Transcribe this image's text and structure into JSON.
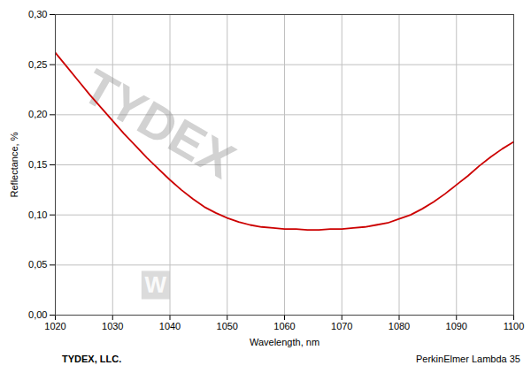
{
  "chart_data": {
    "type": "line",
    "xlabel": "Wavelength, nm",
    "ylabel": "Reflectance, %",
    "x": [
      1020,
      1022,
      1024,
      1026,
      1028,
      1030,
      1032,
      1034,
      1036,
      1038,
      1040,
      1042,
      1044,
      1046,
      1048,
      1050,
      1052,
      1054,
      1056,
      1058,
      1060,
      1062,
      1064,
      1066,
      1068,
      1070,
      1072,
      1074,
      1076,
      1078,
      1080,
      1082,
      1084,
      1086,
      1088,
      1090,
      1092,
      1094,
      1096,
      1098,
      1100
    ],
    "values": [
      0.262,
      0.248,
      0.234,
      0.22,
      0.207,
      0.194,
      0.181,
      0.169,
      0.157,
      0.146,
      0.135,
      0.125,
      0.116,
      0.108,
      0.102,
      0.097,
      0.093,
      0.09,
      0.088,
      0.087,
      0.086,
      0.086,
      0.085,
      0.085,
      0.086,
      0.086,
      0.087,
      0.088,
      0.09,
      0.092,
      0.096,
      0.1,
      0.106,
      0.113,
      0.121,
      0.13,
      0.139,
      0.149,
      0.158,
      0.166,
      0.173
    ],
    "color": "#cc0000",
    "xlim": [
      1020,
      1100
    ],
    "ylim": [
      0.0,
      0.3
    ],
    "xticks": [
      1020,
      1030,
      1040,
      1050,
      1060,
      1070,
      1080,
      1090,
      1100
    ],
    "yticks": [
      {
        "value": 0.0,
        "label": "0,00"
      },
      {
        "value": 0.05,
        "label": "0,05"
      },
      {
        "value": 0.1,
        "label": "0,10"
      },
      {
        "value": 0.15,
        "label": "0,15"
      },
      {
        "value": 0.2,
        "label": "0,20"
      },
      {
        "value": 0.25,
        "label": "0,25"
      },
      {
        "value": 0.3,
        "label": "0,30"
      }
    ],
    "grid": true,
    "annotations": [
      {
        "text": "TYDEX",
        "x": 1038,
        "y": 0.19
      },
      {
        "text": "W",
        "x": 1037.5,
        "y": 0.03
      }
    ],
    "footer": {
      "left": "TYDEX, LLC.",
      "right": "PerkinElmer Lambda 35"
    }
  }
}
